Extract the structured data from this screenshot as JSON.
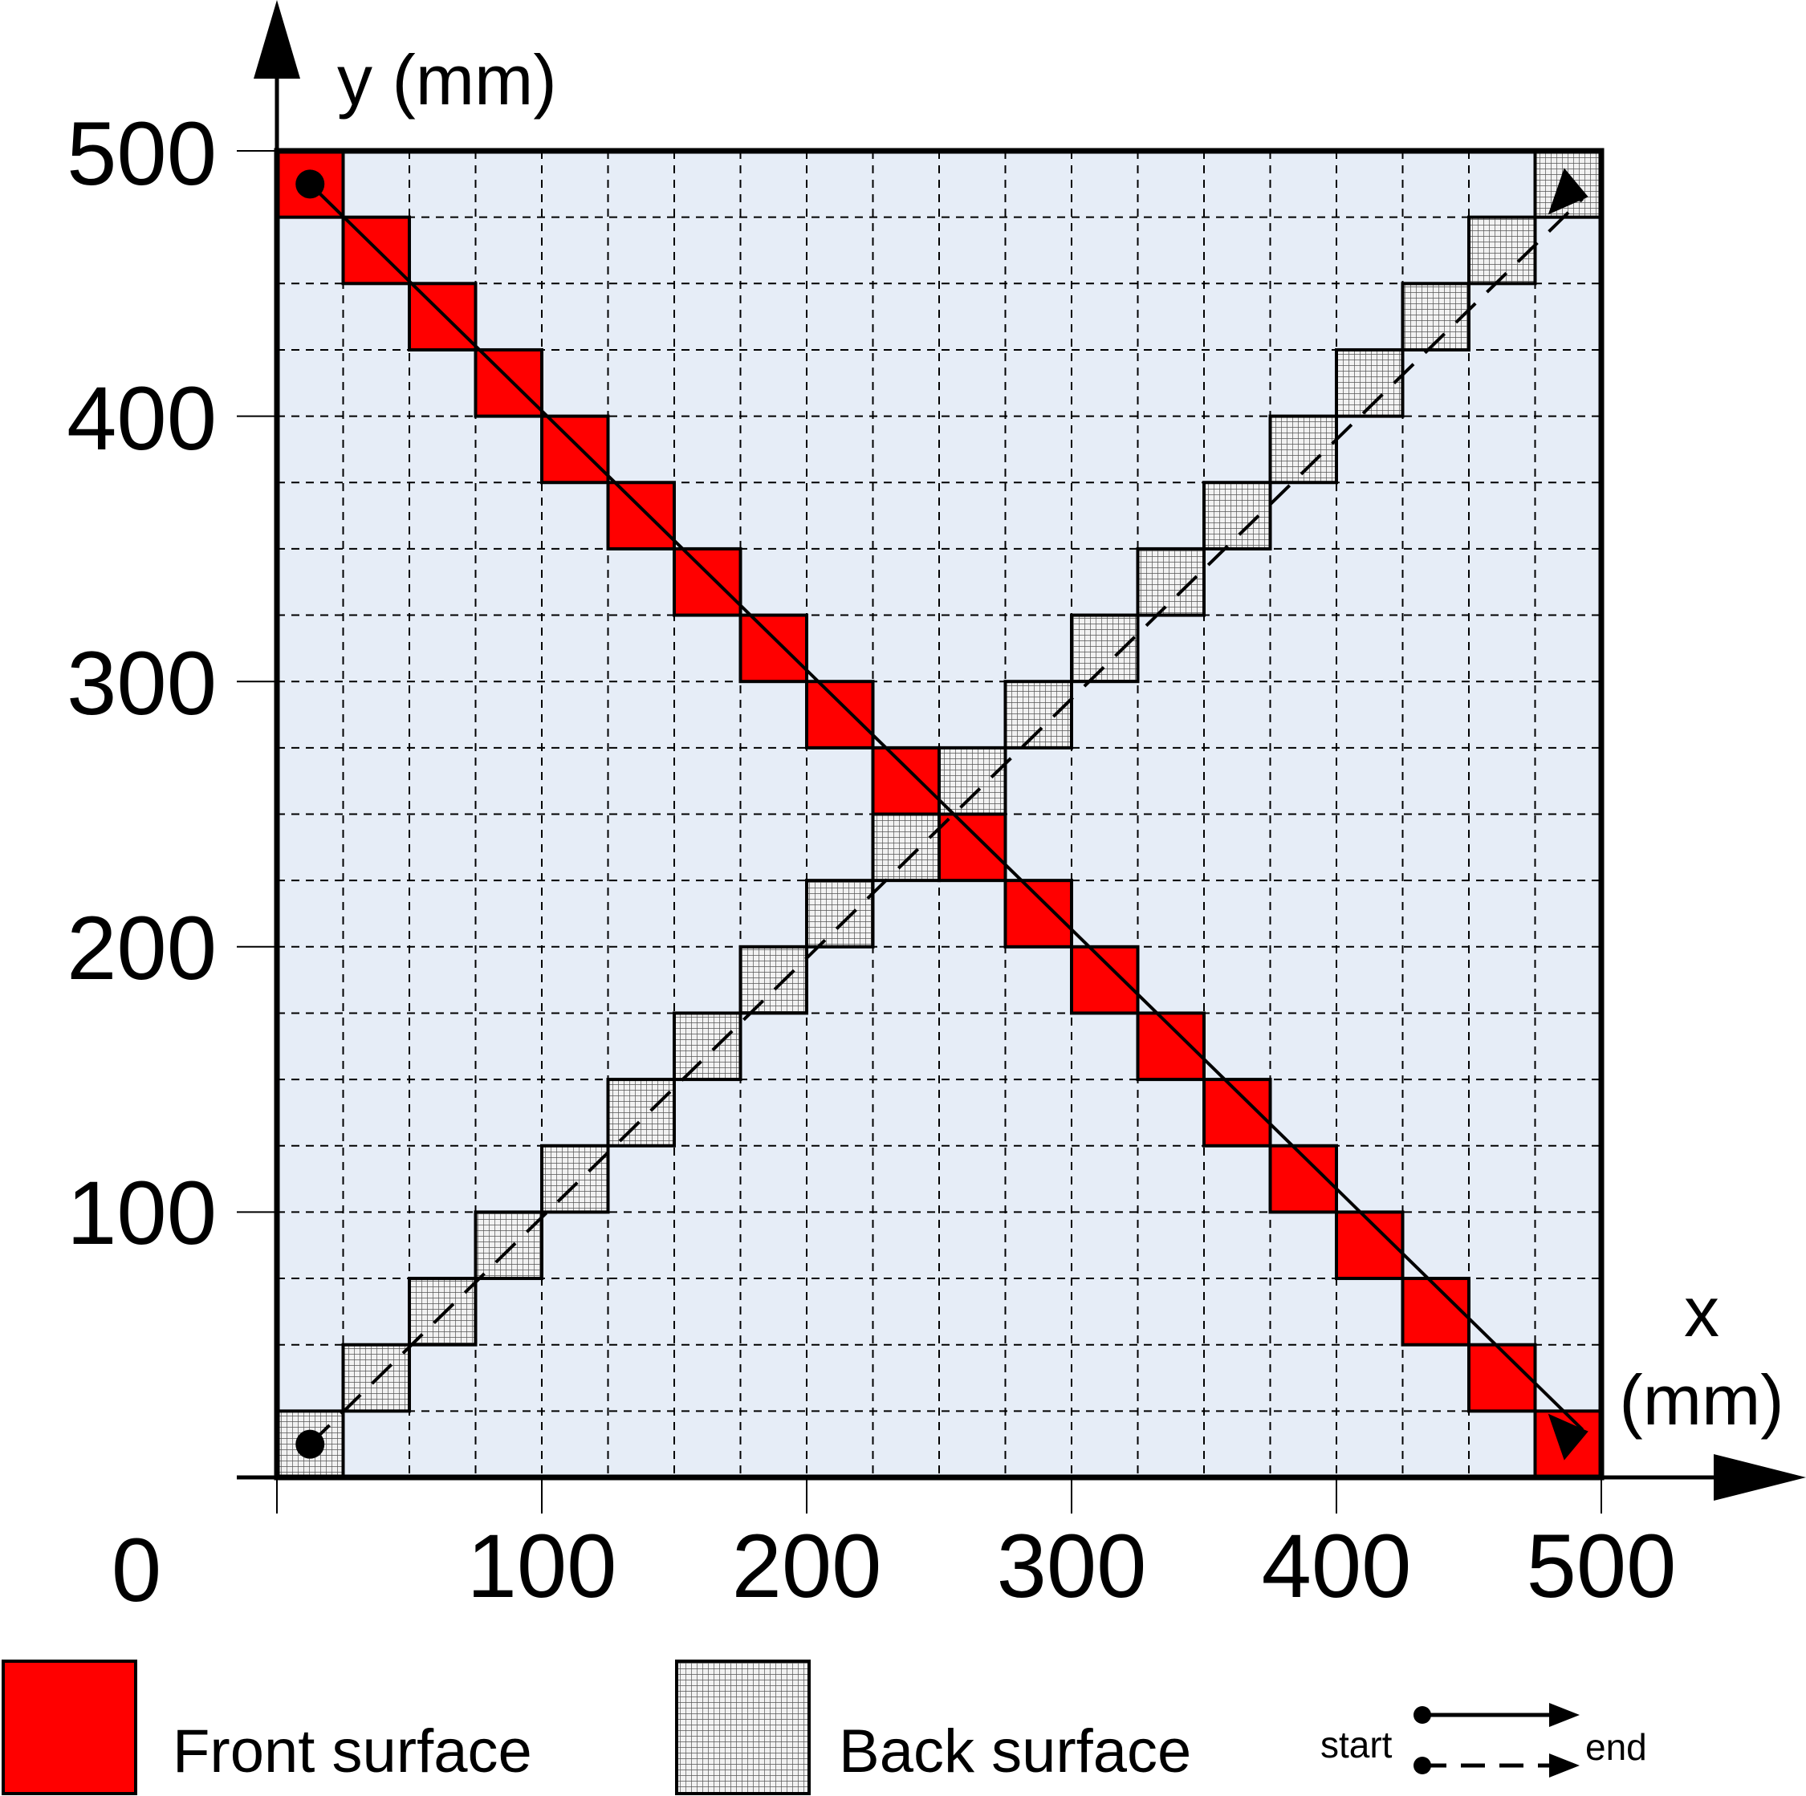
{
  "axes": {
    "x_label": "x",
    "x_unit": "(mm)",
    "y_label": "y (mm)",
    "origin_label": "0",
    "x_ticks": [
      "100",
      "200",
      "300",
      "400",
      "500"
    ],
    "y_ticks": [
      "100",
      "200",
      "300",
      "400",
      "500"
    ],
    "range": [
      0,
      500
    ],
    "grid_step": 25
  },
  "legend": {
    "front_label": "Front surface",
    "back_label": "Back surface",
    "start_label": "start",
    "end_label": "end"
  },
  "colors": {
    "front": "#ff0000",
    "back": "#e6e6e6",
    "plate": "#e6edf7",
    "outline": "#000000"
  },
  "paths": {
    "front": {
      "description_key": "front",
      "start": [
        12.5,
        487.5
      ],
      "end": [
        487.5,
        12.5
      ],
      "line_style": "solid"
    },
    "back": {
      "description_key": "back",
      "start": [
        12.5,
        12.5
      ],
      "end": [
        487.5,
        487.5
      ],
      "line_style": "dashed"
    }
  }
}
